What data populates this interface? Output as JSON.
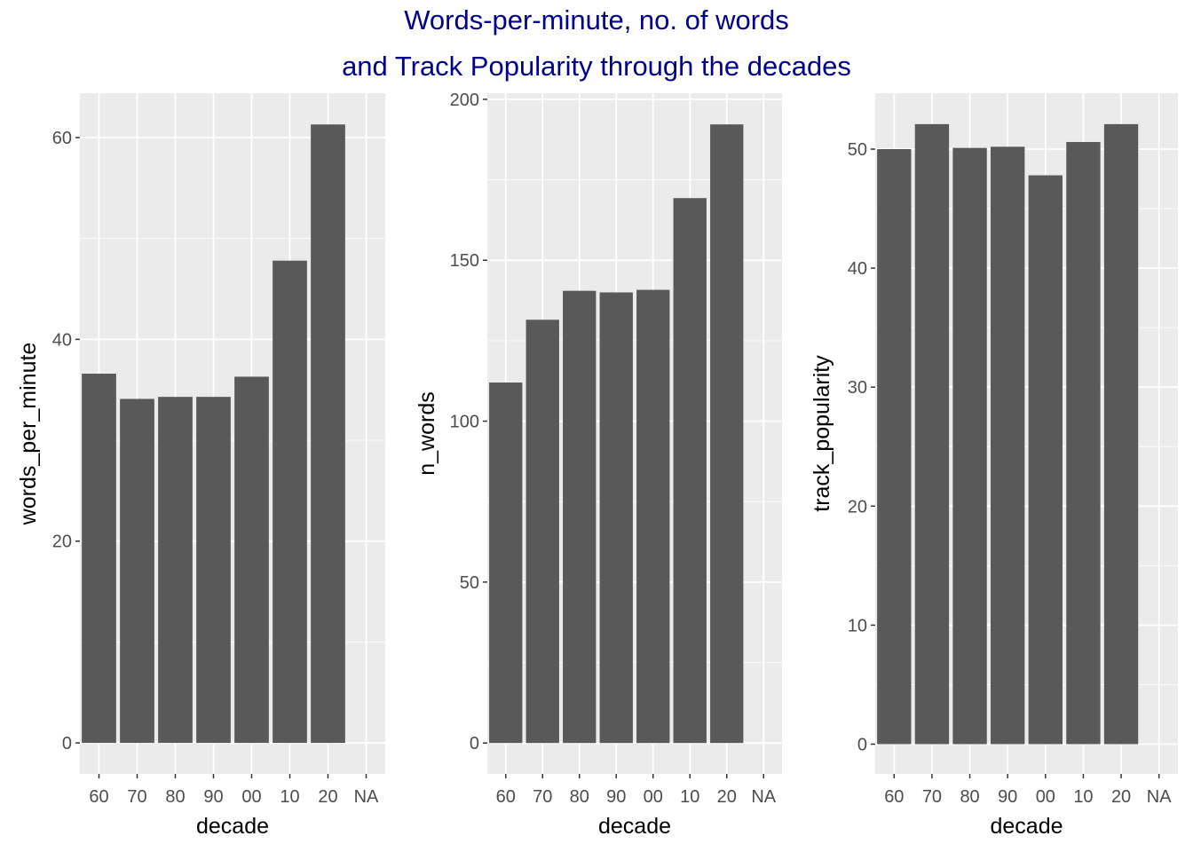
{
  "title": {
    "line1": "Words-per-minute, no. of words",
    "line2": "and Track Popularity through the decades",
    "color": "#00008B"
  },
  "colors": {
    "panel_background": "#EBEBEB",
    "grid": "#FFFFFF",
    "bar_fill": "#595959",
    "tick_text": "#4D4D4D",
    "axis_title": "#000000"
  },
  "chart_data": [
    {
      "type": "bar",
      "categories": [
        "60",
        "70",
        "80",
        "90",
        "00",
        "10",
        "20",
        "NA"
      ],
      "values": [
        36.6,
        34.1,
        34.3,
        34.3,
        36.3,
        47.8,
        61.3,
        null
      ],
      "xlabel": "decade",
      "ylabel": "words_per_minute",
      "ylim": [
        -3.07,
        64.4
      ],
      "yticks": [
        0,
        20,
        40,
        60
      ],
      "grid": true
    },
    {
      "type": "bar",
      "categories": [
        "60",
        "70",
        "80",
        "90",
        "00",
        "10",
        "20",
        "NA"
      ],
      "values": [
        112,
        131.5,
        140.5,
        140,
        140.8,
        169.3,
        192.2,
        null
      ],
      "xlabel": "decade",
      "ylabel": "n_words",
      "ylim": [
        -9.6,
        201.9
      ],
      "yticks": [
        0,
        50,
        100,
        150,
        200
      ],
      "grid": true
    },
    {
      "type": "bar",
      "categories": [
        "60",
        "70",
        "80",
        "90",
        "00",
        "10",
        "20",
        "NA"
      ],
      "values": [
        50.0,
        52.1,
        50.1,
        50.2,
        47.8,
        50.6,
        52.1,
        null
      ],
      "xlabel": "decade",
      "ylabel": "track_popularity",
      "ylim": [
        -2.5,
        54.7
      ],
      "yticks": [
        0,
        10,
        20,
        30,
        40,
        50
      ],
      "grid": true
    }
  ]
}
